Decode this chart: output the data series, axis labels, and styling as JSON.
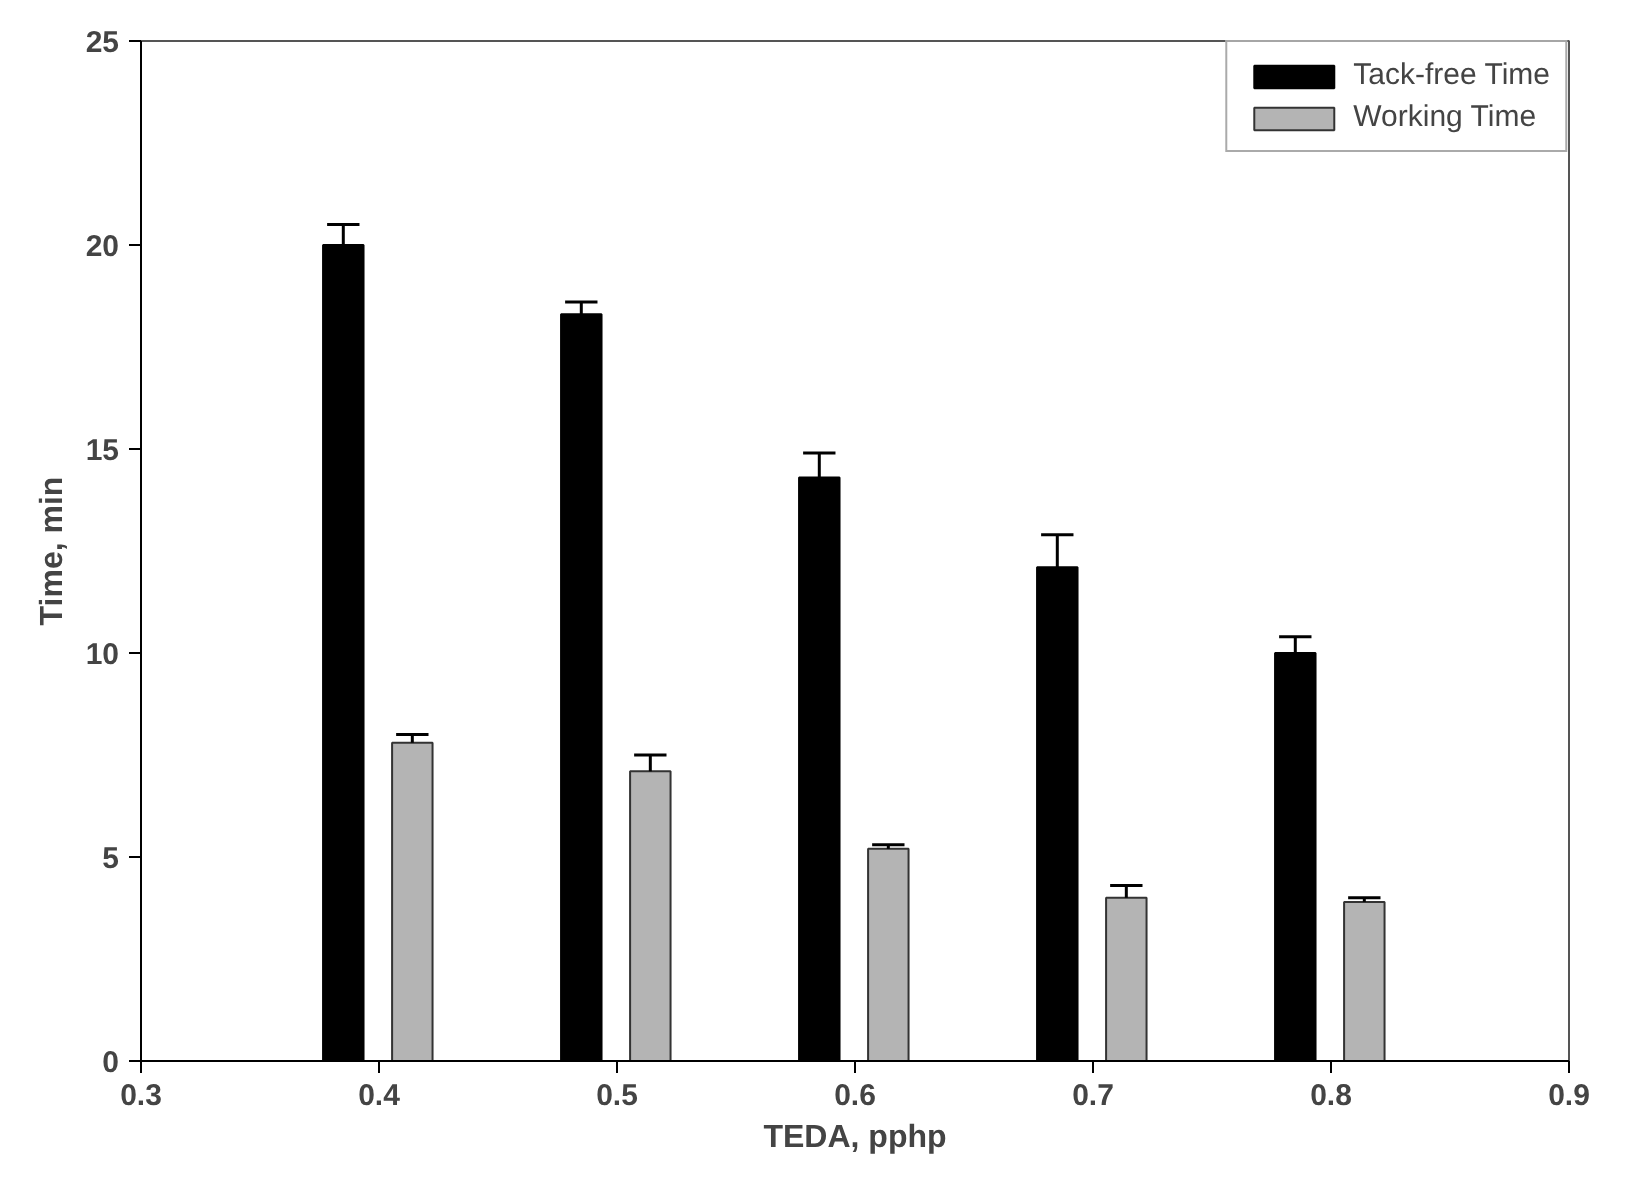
{
  "chart_data": {
    "type": "bar",
    "xlabel": "TEDA, pphp",
    "ylabel": "Time, min",
    "xlim": [
      0.3,
      0.9
    ],
    "xticks": [
      0.3,
      0.4,
      0.5,
      0.6,
      0.7,
      0.8,
      0.9
    ],
    "ylim": [
      0,
      25
    ],
    "yticks": [
      0,
      5,
      10,
      15,
      20,
      25
    ],
    "grid": false,
    "legend": "top right",
    "series": [
      {
        "name": "Tack-free Time",
        "color": "#000000",
        "x": [
          0.385,
          0.485,
          0.585,
          0.685,
          0.785
        ],
        "values": [
          20.0,
          18.3,
          14.3,
          12.1,
          10.0
        ],
        "errors": [
          [
            20.0,
            20.5
          ],
          [
            18.3,
            18.6
          ],
          [
            14.3,
            14.9
          ],
          [
            12.1,
            12.9
          ],
          [
            10.0,
            10.4
          ]
        ]
      },
      {
        "name": "Working Time",
        "color": "#b4b4b4",
        "x": [
          0.414,
          0.514,
          0.614,
          0.714,
          0.814
        ],
        "values": [
          7.8,
          7.1,
          5.2,
          4.0,
          3.9
        ],
        "errors": [
          [
            7.8,
            8.0
          ],
          [
            7.1,
            7.5
          ],
          [
            5.2,
            5.3
          ],
          [
            4.0,
            4.3
          ],
          [
            3.9,
            4.0
          ]
        ]
      }
    ]
  }
}
